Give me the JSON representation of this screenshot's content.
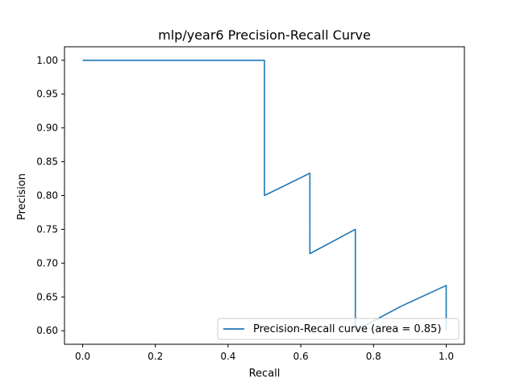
{
  "chart_data": {
    "type": "line",
    "title": "mlp/year6 Precision-Recall Curve",
    "xlabel": "Recall",
    "ylabel": "Precision",
    "xlim": [
      -0.05,
      1.05
    ],
    "ylim": [
      0.58,
      1.02
    ],
    "xticks": [
      0.0,
      0.2,
      0.4,
      0.6,
      0.8,
      1.0
    ],
    "xtick_labels": [
      "0.0",
      "0.2",
      "0.4",
      "0.6",
      "0.8",
      "1.0"
    ],
    "yticks": [
      0.6,
      0.65,
      0.7,
      0.75,
      0.8,
      0.85,
      0.9,
      0.95,
      1.0
    ],
    "ytick_labels": [
      "0.60",
      "0.65",
      "0.70",
      "0.75",
      "0.80",
      "0.85",
      "0.90",
      "0.95",
      "1.00"
    ],
    "grid": false,
    "legend_position": "lower-right",
    "series": [
      {
        "name": "Precision-Recall curve (area = 0.85)",
        "color": "#1f77b4",
        "x": [
          0.0,
          0.125,
          0.25,
          0.375,
          0.5,
          0.5,
          0.625,
          0.625,
          0.75,
          0.75,
          0.75,
          0.875,
          1.0,
          1.0
        ],
        "y": [
          1.0,
          1.0,
          1.0,
          1.0,
          1.0,
          0.8,
          0.833,
          0.714,
          0.75,
          0.667,
          0.6,
          0.636,
          0.667,
          0.6
        ]
      }
    ]
  }
}
